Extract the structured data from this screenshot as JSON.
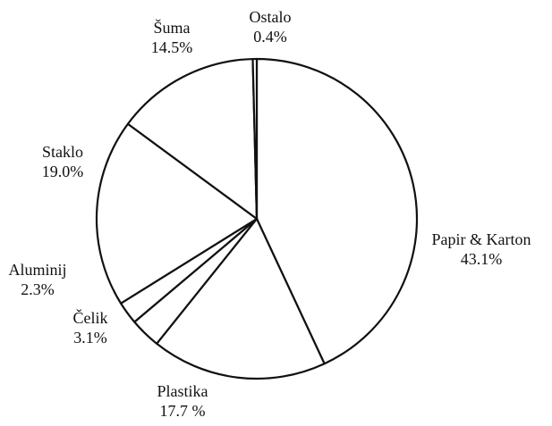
{
  "chart_data": {
    "type": "pie",
    "title": "",
    "categories": [
      "Papir & Karton",
      "Plastika",
      "Čelik",
      "Aluminij",
      "Staklo",
      "Šuma",
      "Ostalo"
    ],
    "values": [
      43.1,
      17.7,
      3.1,
      2.3,
      19.0,
      14.5,
      0.4
    ],
    "value_labels": [
      "43.1%",
      "17.7 %",
      "3.1%",
      "2.3%",
      "19.0%",
      "14.5%",
      "0.4%"
    ],
    "start_angle_deg": 0,
    "direction": "clockwise",
    "colors": {
      "fill": "#ffffff",
      "stroke": "#111111",
      "text": "#111111"
    },
    "legend": "none"
  }
}
